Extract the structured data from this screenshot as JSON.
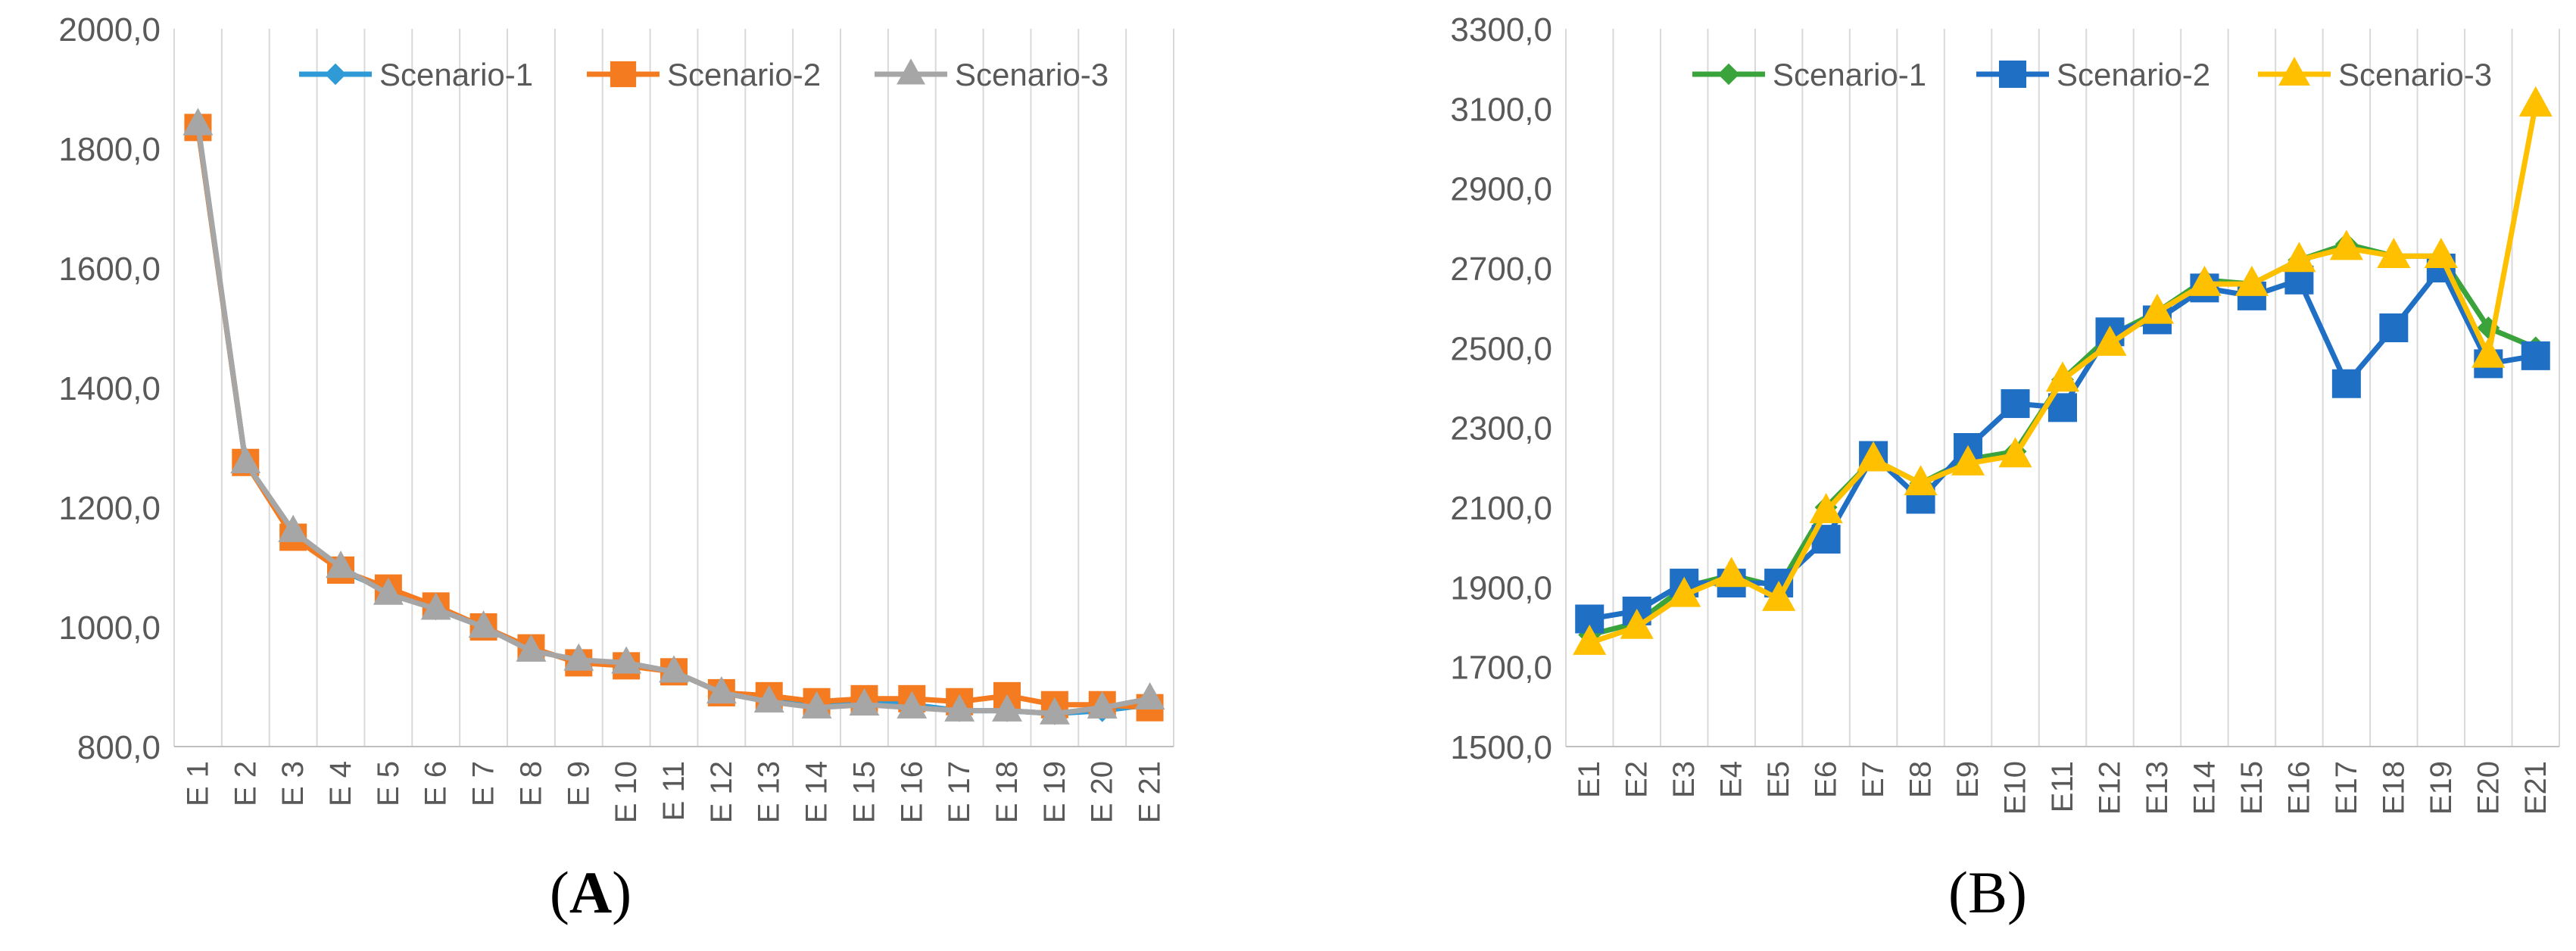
{
  "chart_data": [
    {
      "type": "line",
      "caption": "A",
      "categories": [
        "E 1",
        "E 2",
        "E 3",
        "E 4",
        "E 5",
        "E 6",
        "E 7",
        "E 8",
        "E 9",
        "E 10",
        "E 11",
        "E 12",
        "E 13",
        "E 14",
        "E 15",
        "E 16",
        "E 17",
        "E 18",
        "E 19",
        "E 20",
        "E 21"
      ],
      "ylim": [
        800,
        2000
      ],
      "yticks": [
        800,
        1000,
        1200,
        1400,
        1600,
        1800,
        2000
      ],
      "ytick_labels": [
        "800,0",
        "1000,0",
        "1200,0",
        "1400,0",
        "1600,0",
        "1800,0",
        "2000,0"
      ],
      "grid": "vertical",
      "legend": "top-right",
      "series": [
        {
          "name": "Scenario-1",
          "color": "#2E9BD6",
          "marker": "diamond",
          "values": [
            1835,
            1275,
            1155,
            1095,
            1060,
            1030,
            1000,
            965,
            940,
            940,
            925,
            890,
            880,
            870,
            875,
            870,
            860,
            860,
            855,
            860,
            870
          ]
        },
        {
          "name": "Scenario-2",
          "color": "#F47B20",
          "marker": "square",
          "values": [
            1835,
            1275,
            1150,
            1095,
            1065,
            1035,
            1000,
            965,
            940,
            935,
            925,
            890,
            885,
            875,
            880,
            880,
            875,
            885,
            870,
            870,
            865
          ]
        },
        {
          "name": "Scenario-3",
          "color": "#A6A6A6",
          "marker": "triangle",
          "values": [
            1840,
            1275,
            1160,
            1100,
            1055,
            1030,
            1000,
            960,
            945,
            940,
            925,
            890,
            875,
            865,
            870,
            865,
            860,
            860,
            855,
            865,
            880
          ]
        }
      ]
    },
    {
      "type": "line",
      "caption": "B",
      "categories": [
        "E1",
        "E2",
        "E3",
        "E4",
        "E5",
        "E6",
        "E7",
        "E8",
        "E9",
        "E10",
        "E11",
        "E12",
        "E13",
        "E14",
        "E15",
        "E16",
        "E17",
        "E18",
        "E19",
        "E20",
        "E21"
      ],
      "ylim": [
        1500,
        3300
      ],
      "yticks": [
        1500,
        1700,
        1900,
        2100,
        2300,
        2500,
        2700,
        2900,
        3100,
        3300
      ],
      "ytick_labels": [
        "1500,0",
        "1700,0",
        "1900,0",
        "2100,0",
        "2300,0",
        "2500,0",
        "2700,0",
        "2900,0",
        "3100,0",
        "3300,0"
      ],
      "grid": "vertical",
      "legend": "top-right",
      "series": [
        {
          "name": "Scenario-1",
          "color": "#3BA33B",
          "marker": "diamond",
          "values": [
            1780,
            1810,
            1900,
            1930,
            1900,
            2100,
            2220,
            2160,
            2220,
            2240,
            2420,
            2530,
            2590,
            2670,
            2660,
            2720,
            2760,
            2730,
            2730,
            2550,
            2500
          ]
        },
        {
          "name": "Scenario-2",
          "color": "#1F6FC5",
          "marker": "square",
          "values": [
            1820,
            1840,
            1910,
            1910,
            1910,
            2020,
            2230,
            2120,
            2250,
            2360,
            2350,
            2540,
            2570,
            2650,
            2630,
            2670,
            2410,
            2550,
            2700,
            2460,
            2480
          ]
        },
        {
          "name": "Scenario-3",
          "color": "#FFC000",
          "marker": "triangle",
          "values": [
            1760,
            1800,
            1880,
            1930,
            1870,
            2090,
            2220,
            2160,
            2210,
            2230,
            2420,
            2510,
            2590,
            2660,
            2660,
            2720,
            2750,
            2730,
            2730,
            2480,
            3110
          ]
        }
      ]
    }
  ]
}
